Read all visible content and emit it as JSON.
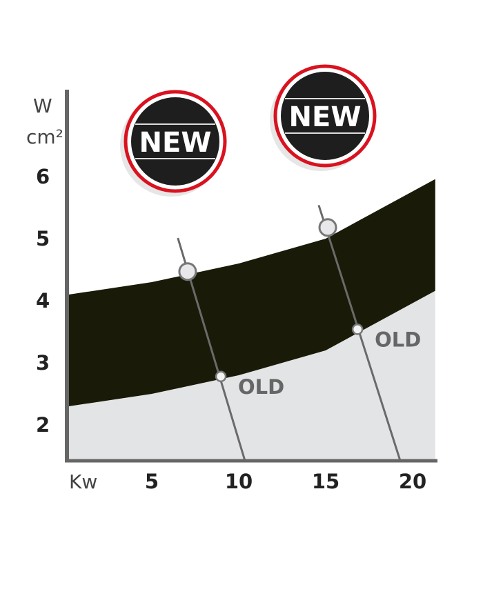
{
  "chart_data": {
    "type": "area",
    "y_unit": {
      "top": "W",
      "bottom": "cm²"
    },
    "x_unit": "Kw",
    "x_ticks": [
      5,
      10,
      15,
      20
    ],
    "y_ticks": [
      2,
      3,
      4,
      5,
      6
    ],
    "xlim": [
      0,
      21.3
    ],
    "ylim": [
      1.42,
      7.4
    ],
    "grid": false,
    "band": {
      "upper": [
        [
          0,
          4.09
        ],
        [
          5,
          4.3
        ],
        [
          10,
          4.6
        ],
        [
          15,
          5.0
        ],
        [
          21.3,
          5.96
        ]
      ],
      "lower": [
        [
          0,
          2.29
        ],
        [
          5,
          2.5
        ],
        [
          10,
          2.8
        ],
        [
          15,
          3.2
        ],
        [
          21.3,
          4.16
        ]
      ],
      "color": "#1a1a08"
    },
    "below_band_color": "#e3e4e6",
    "lines": [
      {
        "from": [
          6.5,
          5.01
        ],
        "to": [
          10.36,
          1.42
        ],
        "new_point": [
          7.06,
          4.47
        ],
        "old_point": [
          8.97,
          2.78
        ],
        "old_label": "OLD"
      },
      {
        "from": [
          14.6,
          5.54
        ],
        "to": [
          19.29,
          1.42
        ],
        "new_point": [
          15.12,
          5.18
        ],
        "old_point": [
          16.83,
          3.54
        ],
        "old_label": "OLD"
      }
    ],
    "badges": [
      {
        "label": "NEW"
      },
      {
        "label": "NEW"
      }
    ],
    "colors": {
      "badge_ring": "#d9121f",
      "badge_fill": "#1e1e1e",
      "axis": "#666666",
      "line": "#6a6a6a"
    }
  }
}
